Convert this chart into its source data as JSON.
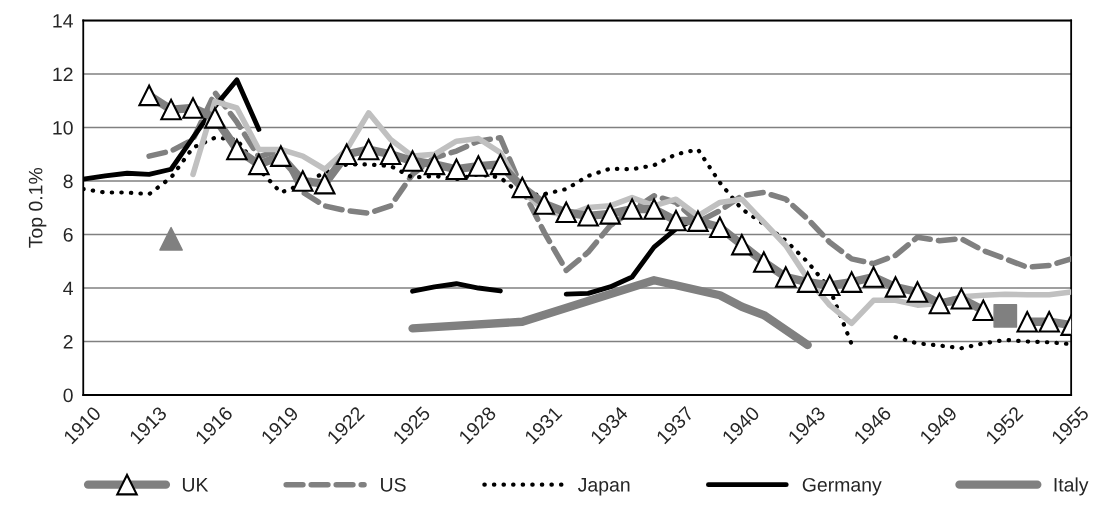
{
  "chart_data": {
    "type": "line",
    "ylabel": "Top 0.1%",
    "xlim": [
      1910,
      1955
    ],
    "ylim": [
      0,
      14
    ],
    "xticks": [
      1910,
      1913,
      1916,
      1919,
      1922,
      1925,
      1928,
      1931,
      1934,
      1937,
      1940,
      1943,
      1946,
      1949,
      1952,
      1955
    ],
    "yticks": [
      0,
      2,
      4,
      6,
      8,
      10,
      12,
      14
    ],
    "grid": "y",
    "legend": "bottom",
    "series": [
      {
        "name": "UK",
        "color": "#808080",
        "marker": "triangle",
        "line_style": "solid",
        "x": [
          1913,
          1914,
          1915,
          1916,
          1917,
          1918,
          1919,
          1920,
          1921,
          1922,
          1923,
          1924,
          1925,
          1926,
          1927,
          1928,
          1929,
          1930,
          1931,
          1932,
          1933,
          1934,
          1935,
          1936,
          1937,
          1938,
          1939,
          1940,
          1941,
          1942,
          1943,
          1944,
          1945,
          1946,
          1947,
          1948,
          1949,
          1950,
          1951,
          1952,
          1953,
          1954,
          1955
        ],
        "values": [
          11.2,
          10.67,
          10.73,
          10.36,
          9.18,
          8.62,
          8.93,
          8.0,
          7.9,
          9.0,
          9.18,
          9.0,
          8.75,
          8.62,
          8.44,
          8.56,
          8.62,
          7.76,
          7.14,
          6.83,
          6.7,
          6.77,
          6.95,
          6.95,
          6.52,
          6.5,
          6.27,
          5.62,
          4.97,
          4.41,
          4.22,
          4.1,
          4.22,
          4.41,
          4.04,
          3.85,
          3.42,
          3.6,
          3.17,
          null,
          2.74,
          2.74,
          2.61
        ]
      },
      {
        "name": "US",
        "color": "#808080",
        "marker": "none",
        "line_style": "dashed",
        "x": [
          1913,
          1914,
          1915,
          1916,
          1917,
          1918,
          1919,
          1920,
          1921,
          1922,
          1923,
          1924,
          1925,
          1926,
          1927,
          1928,
          1929,
          1930,
          1931,
          1932,
          1933,
          1934,
          1935,
          1936,
          1937,
          1938,
          1939,
          1940,
          1941,
          1942,
          1943,
          1944,
          1945,
          1946,
          1947,
          1948,
          1949,
          1950,
          1951,
          1952,
          1953,
          1954,
          1955
        ],
        "values": [
          8.93,
          9.12,
          9.55,
          11.3,
          10.2,
          8.9,
          9.18,
          7.58,
          7.07,
          6.89,
          6.8,
          7.07,
          8.25,
          8.87,
          9.12,
          9.49,
          9.62,
          7.7,
          6.08,
          4.66,
          5.34,
          6.33,
          6.89,
          7.45,
          7.2,
          6.46,
          6.89,
          7.45,
          7.57,
          7.32,
          6.58,
          5.71,
          5.09,
          4.91,
          5.22,
          5.9,
          5.77,
          5.84,
          5.4,
          5.09,
          4.78,
          4.84,
          5.09
        ]
      },
      {
        "name": "Japan",
        "color": "#000000",
        "marker": "none",
        "line_style": "dotted",
        "x": [
          1910,
          1911,
          1912,
          1913,
          1914,
          1915,
          1916,
          1917,
          1918,
          1919,
          1920,
          1921,
          1922,
          1923,
          1924,
          1925,
          1926,
          1927,
          1928,
          1929,
          1930,
          1931,
          1932,
          1933,
          1934,
          1935,
          1936,
          1937,
          1938,
          1939,
          1940,
          1941,
          1942,
          1943,
          1944,
          1945,
          1946,
          1947,
          1948,
          1949,
          1950,
          1951,
          1952,
          1953,
          1954,
          1955
        ],
        "values": [
          7.7,
          7.57,
          7.57,
          7.51,
          8.13,
          9.25,
          9.62,
          9.55,
          8.44,
          7.57,
          7.88,
          8.32,
          8.62,
          8.62,
          8.56,
          8.13,
          8.19,
          8.07,
          8.25,
          8.13,
          7.45,
          7.51,
          7.7,
          8.19,
          8.46,
          8.44,
          8.59,
          9.0,
          9.18,
          7.94,
          6.95,
          6.39,
          5.77,
          4.97,
          3.98,
          1.9,
          null,
          2.16,
          1.93,
          1.85,
          1.75,
          1.93,
          2.06,
          2.0,
          1.97,
          1.9
        ]
      },
      {
        "name": "Germany",
        "color": "#000000",
        "marker": "none",
        "line_style": "solid",
        "x": [
          1910,
          1911,
          1912,
          1913,
          1914,
          1915,
          1916,
          1917,
          1918,
          1919,
          1925,
          1926,
          1927,
          1928,
          1929,
          1930,
          1932,
          1933,
          1934,
          1935,
          1936,
          1937,
          1938,
          1939,
          1949,
          1950
        ],
        "values": [
          8.07,
          8.19,
          8.29,
          8.25,
          8.44,
          9.62,
          10.79,
          11.78,
          9.93,
          null,
          3.88,
          4.04,
          4.16,
          4.0,
          3.89,
          null,
          3.77,
          3.8,
          4.04,
          4.41,
          5.53,
          6.21,
          6.64,
          null,
          3.45,
          3.45
        ]
      },
      {
        "name": "Italy",
        "color": "#808080",
        "marker": "none",
        "line_style": "solid",
        "x": [
          1925,
          1930,
          1936,
          1939,
          1940,
          1941,
          1943
        ],
        "values": [
          2.49,
          2.74,
          4.29,
          3.73,
          3.3,
          2.99,
          1.87
        ]
      },
      {
        "color": "#c0c0c0",
        "marker": "none",
        "line_style": "solid",
        "x": [
          1915,
          1916,
          1917,
          1918,
          1919,
          1920,
          1921,
          1922,
          1923,
          1924,
          1925,
          1926,
          1927,
          1928,
          1929,
          1930,
          1931,
          1932,
          1933,
          1934,
          1935,
          1936,
          1937,
          1938,
          1939,
          1940,
          1941,
          1942,
          1943,
          1944,
          1945,
          1946,
          1947,
          1948,
          1949,
          1950,
          1951,
          1952,
          1953,
          1954,
          1955
        ],
        "values": [
          8.25,
          10.98,
          10.73,
          9.18,
          9.18,
          8.93,
          8.44,
          9.18,
          10.55,
          9.55,
          8.93,
          9.0,
          9.49,
          9.59,
          9.06,
          7.63,
          6.89,
          6.7,
          7.01,
          7.07,
          7.38,
          7.07,
          7.32,
          6.7,
          7.2,
          7.32,
          6.46,
          5.59,
          4.35,
          3.36,
          2.68,
          3.54,
          3.54,
          3.36,
          3.42,
          3.67,
          3.73,
          3.77,
          3.75,
          3.75,
          3.85
        ]
      },
      {
        "type": "scatter",
        "color": "#808080",
        "marker": "triangle",
        "x": [
          1914
        ],
        "values": [
          5.84
        ]
      },
      {
        "type": "scatter",
        "color": "#808080",
        "marker": "square",
        "x": [
          1952
        ],
        "values": [
          2.96
        ]
      }
    ]
  }
}
